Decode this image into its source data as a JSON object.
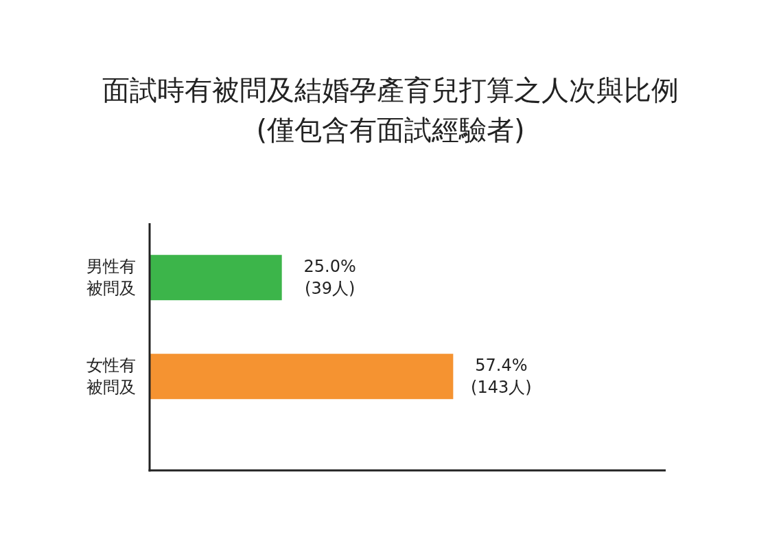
{
  "chart_data": {
    "type": "bar",
    "orientation": "horizontal",
    "title": "面試時有被問及結婚孕產育兒打算之人次與比例\n(僅包含有面試經驗者)",
    "categories": [
      "男性有被問及",
      "女性有被問及"
    ],
    "values": [
      25.0,
      57.4
    ],
    "colors": [
      "#3cb54a",
      "#f59331"
    ],
    "value_labels": [
      "25.0%\n(39人)",
      "57.4%\n(143人)"
    ]
  }
}
